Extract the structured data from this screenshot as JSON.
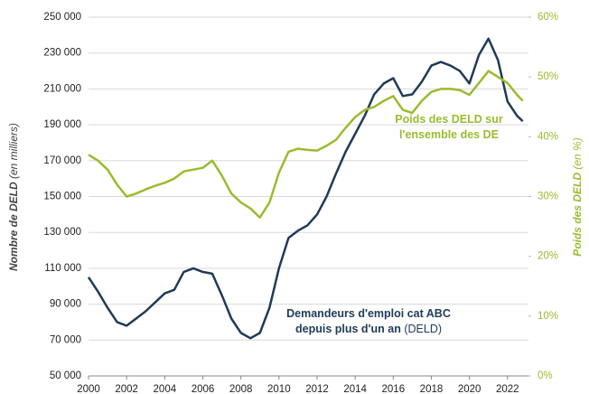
{
  "chart_data": {
    "type": "line",
    "x_label": null,
    "y_label": {
      "main": "Nombre de DELD",
      "unit": "(en milliers)"
    },
    "y2_label": {
      "main": "Poids des DELD",
      "unit": "(en %)"
    },
    "xlim": [
      2000,
      2023.1
    ],
    "xticks": [
      2000,
      2002,
      2004,
      2006,
      2008,
      2010,
      2012,
      2014,
      2016,
      2018,
      2020,
      2022
    ],
    "ylim": [
      50000,
      250000
    ],
    "yticks": [
      {
        "value": 50000,
        "label": "50 000"
      },
      {
        "value": 70000,
        "label": "70 000"
      },
      {
        "value": 90000,
        "label": "90 000"
      },
      {
        "value": 110000,
        "label": "110 000"
      },
      {
        "value": 130000,
        "label": "130 000"
      },
      {
        "value": 150000,
        "label": "150 000"
      },
      {
        "value": 170000,
        "label": "170 000"
      },
      {
        "value": 190000,
        "label": "190 000"
      },
      {
        "value": 210000,
        "label": "210 000"
      },
      {
        "value": 230000,
        "label": "230 000"
      },
      {
        "value": 250000,
        "label": "250 000"
      }
    ],
    "y2lim": [
      0,
      60
    ],
    "y2ticks": [
      {
        "value": 0,
        "label": "0%"
      },
      {
        "value": 10,
        "label": "10%"
      },
      {
        "value": 20,
        "label": "20%"
      },
      {
        "value": 30,
        "label": "30%"
      },
      {
        "value": 40,
        "label": "40%"
      },
      {
        "value": 50,
        "label": "50%"
      },
      {
        "value": 60,
        "label": "60%"
      }
    ],
    "grid": true,
    "x": [
      2000,
      2000.5,
      2001,
      2001.5,
      2002,
      2002.5,
      2003,
      2003.5,
      2004,
      2004.5,
      2005,
      2005.5,
      2006,
      2006.5,
      2007,
      2007.5,
      2008,
      2008.5,
      2009,
      2009.5,
      2010,
      2010.5,
      2011,
      2011.5,
      2012,
      2012.5,
      2013,
      2013.5,
      2014,
      2014.5,
      2015,
      2015.5,
      2016,
      2016.5,
      2017,
      2017.5,
      2018,
      2018.5,
      2019,
      2019.5,
      2020,
      2020.5,
      2021,
      2021.5,
      2022,
      2022.5,
      2022.8
    ],
    "series": [
      {
        "color": "#1f3b57",
        "axis": "y",
        "values": [
          105000,
          97000,
          88000,
          80000,
          78000,
          82000,
          86000,
          91000,
          96000,
          98000,
          108000,
          110000,
          108000,
          107000,
          95000,
          82000,
          74000,
          71000,
          74000,
          88000,
          110000,
          127000,
          131000,
          134000,
          140000,
          150000,
          163000,
          175000,
          185000,
          195000,
          207000,
          213000,
          216000,
          206000,
          207000,
          214000,
          223000,
          225000,
          223000,
          220000,
          213000,
          229000,
          238000,
          226000,
          203000,
          195000,
          192000
        ]
      },
      {
        "color": "#9bbb2e",
        "axis": "y2",
        "values": [
          37,
          36,
          34.5,
          32,
          30,
          30.5,
          31.2,
          31.8,
          32.3,
          33,
          34.2,
          34.5,
          34.8,
          36,
          33.5,
          30.5,
          29,
          28,
          26.5,
          29,
          34,
          37.5,
          38,
          37.8,
          37.7,
          38.5,
          39.5,
          41.5,
          43.3,
          44.5,
          45,
          46,
          46.8,
          44.5,
          44,
          46,
          47.5,
          48,
          48,
          47.8,
          47,
          49,
          51,
          50,
          49,
          47,
          46
        ]
      }
    ],
    "annotations": [
      {
        "lines": [
          "Poids des DELD sur",
          "l'ensemble des DE"
        ],
        "color": "#9bbb2e"
      },
      {
        "lines": [
          "Demandeurs d'emploi cat ABC",
          "depuis plus d'un an"
        ],
        "suffix": "(DELD)",
        "color": "#1f3b57"
      }
    ]
  }
}
